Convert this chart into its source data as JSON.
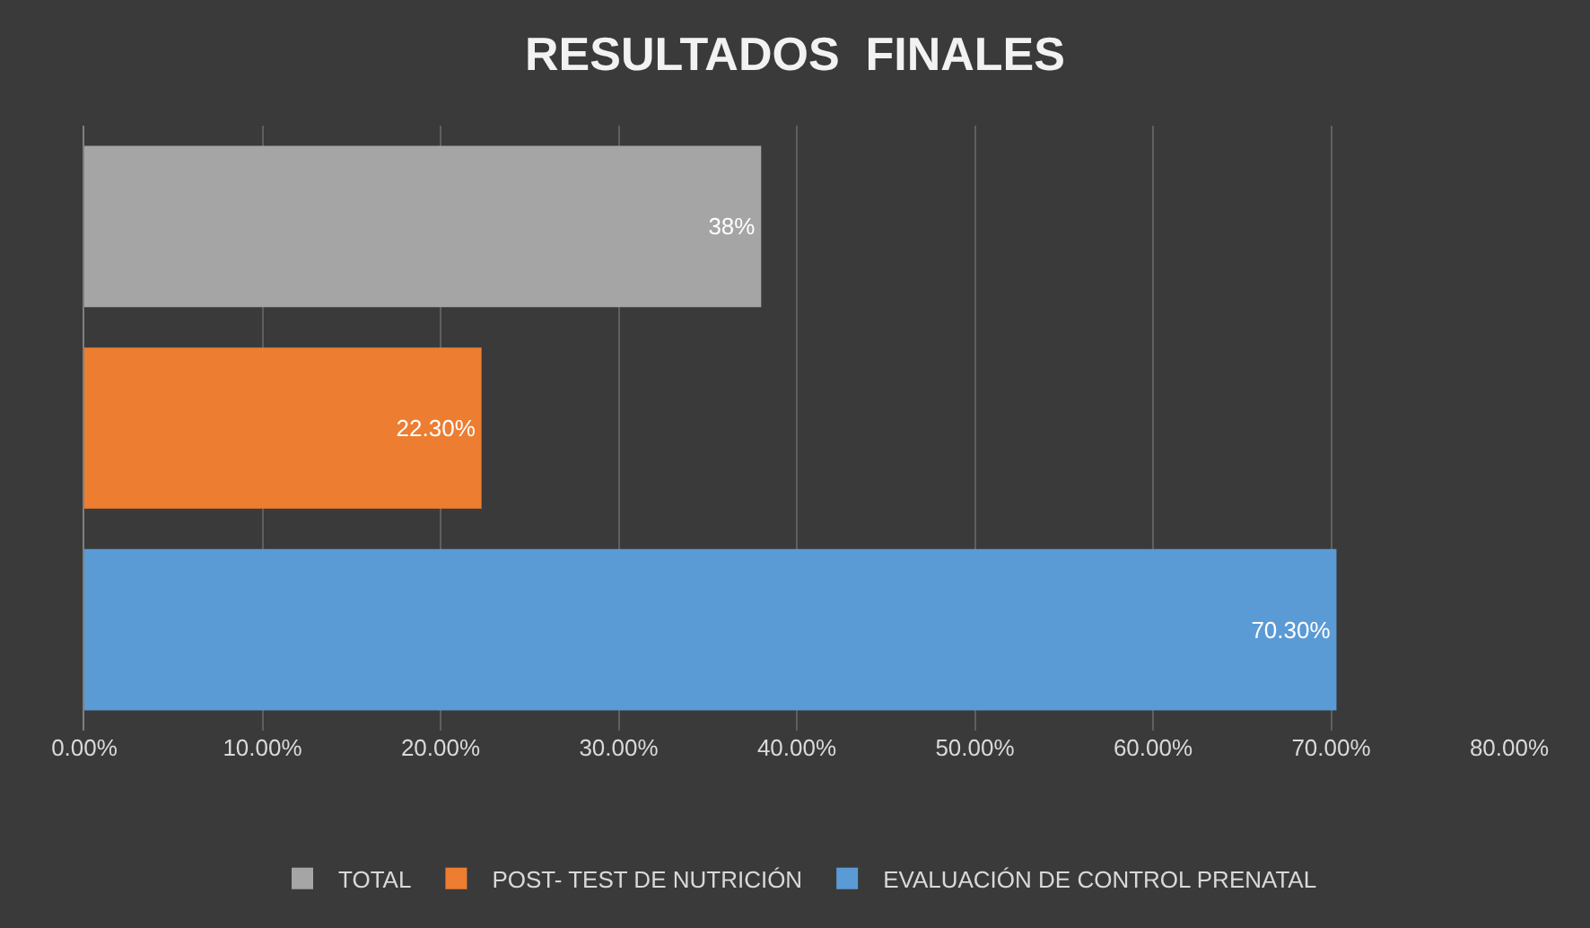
{
  "chart_data": {
    "type": "bar",
    "orientation": "horizontal",
    "title": "RESULTADOS  FINALES",
    "categories": [
      null,
      null,
      null
    ],
    "series": [
      {
        "name": "TOTAL",
        "color": "#a5a5a5",
        "values": [
          38,
          null,
          null
        ],
        "value_labels": [
          "38%",
          null,
          null
        ]
      },
      {
        "name": "POST- TEST DE NUTRICIÓN",
        "color": "#ed7d31",
        "values": [
          null,
          22.3,
          null
        ],
        "value_labels": [
          null,
          "22.30%",
          null
        ]
      },
      {
        "name": "EVALUACIÓN DE CONTROL PRENATAL",
        "color": "#5b9bd5",
        "values": [
          null,
          null,
          70.3
        ],
        "value_labels": [
          null,
          null,
          "70.30%"
        ]
      }
    ],
    "xlim": [
      0,
      80
    ],
    "xticks": [
      {
        "value": 0,
        "label": "0.00%"
      },
      {
        "value": 10,
        "label": "10.00%"
      },
      {
        "value": 20,
        "label": "20.00%"
      },
      {
        "value": 30,
        "label": "30.00%"
      },
      {
        "value": 40,
        "label": "40.00%"
      },
      {
        "value": 50,
        "label": "50.00%"
      },
      {
        "value": 60,
        "label": "60.00%"
      },
      {
        "value": 70,
        "label": "70.00%"
      },
      {
        "value": 80,
        "label": "80.00%"
      }
    ],
    "grid": "x",
    "legend": "bottom",
    "tick_labels": "x"
  }
}
